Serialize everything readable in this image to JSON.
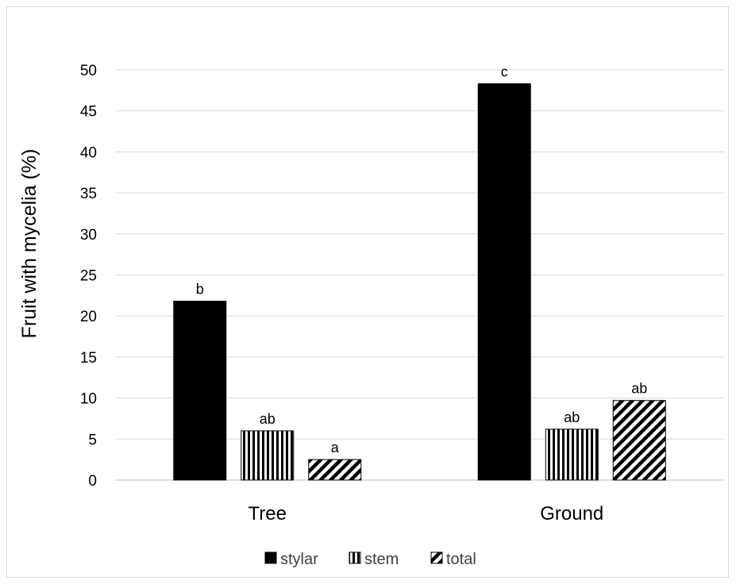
{
  "chart_data": {
    "type": "bar",
    "title": "",
    "xlabel": "",
    "ylabel": "Fruit with mycelia (%)",
    "ylim": [
      0,
      50
    ],
    "yticks": [
      0,
      5,
      10,
      15,
      20,
      25,
      30,
      35,
      40,
      45,
      50
    ],
    "grid": true,
    "legend_position": "bottom",
    "categories": [
      "Tree",
      "Ground"
    ],
    "series": [
      {
        "name": "stylar",
        "values": [
          21.8,
          48.3
        ],
        "labels": [
          "b",
          "c"
        ],
        "pattern": "solid",
        "color": "#000000"
      },
      {
        "name": "stem",
        "values": [
          6.0,
          6.2
        ],
        "labels": [
          "ab",
          "ab"
        ],
        "pattern": "vertical-stripes",
        "color": "#000000"
      },
      {
        "name": "total",
        "values": [
          2.5,
          9.7
        ],
        "labels": [
          "a",
          "ab"
        ],
        "pattern": "diagonal-stripes",
        "color": "#000000"
      }
    ]
  }
}
